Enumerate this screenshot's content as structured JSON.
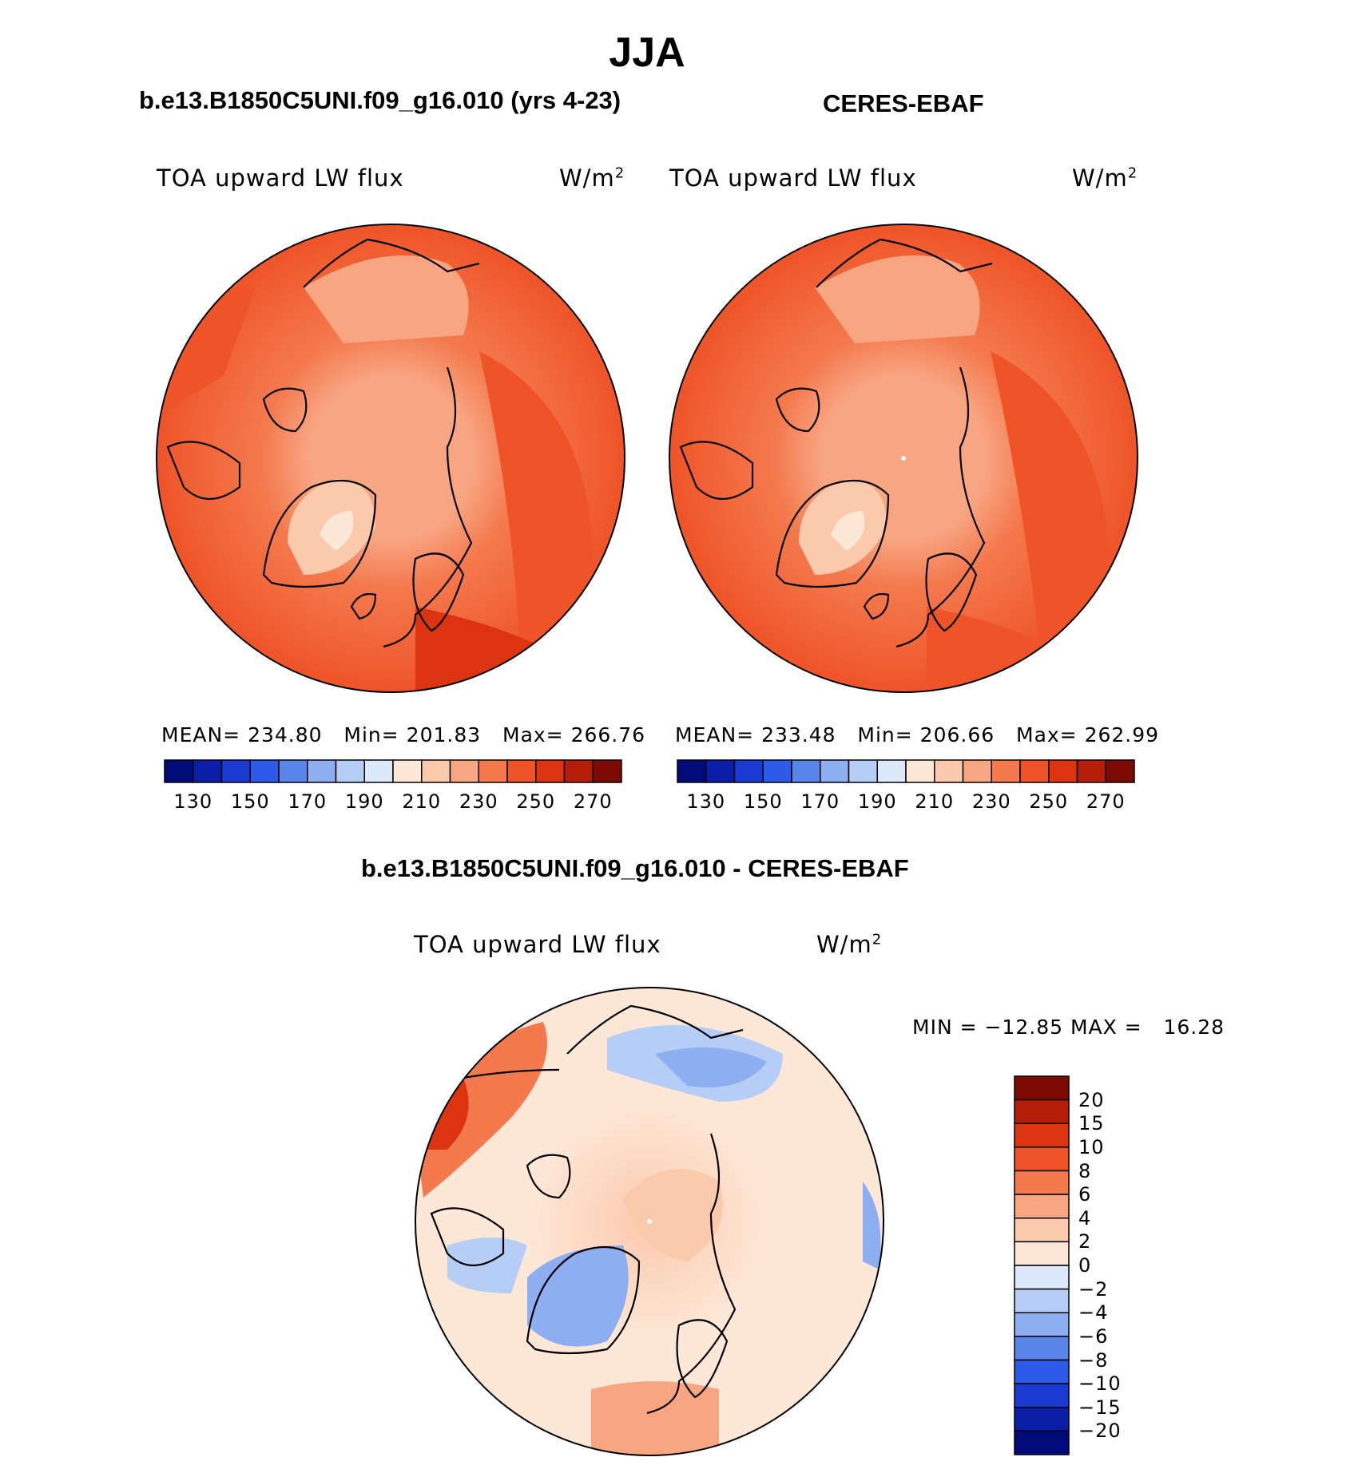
{
  "figure": {
    "title": "JJA",
    "panels": [
      {
        "id": "model",
        "title": "b.e13.B1850C5UNI.f09_g16.010 (yrs 4-23)",
        "variable": "TOA upward LW flux",
        "units_base": "W/m",
        "units_exp": "2",
        "stats": {
          "mean_label": "MEAN=",
          "mean": "234.80",
          "min_label": "Min=",
          "min": "201.83",
          "max_label": "Max=",
          "max": "266.76"
        }
      },
      {
        "id": "obs",
        "title": "CERES-EBAF",
        "variable": "TOA upward LW flux",
        "units_base": "W/m",
        "units_exp": "2",
        "stats": {
          "mean_label": "MEAN=",
          "mean": "233.48",
          "min_label": "Min=",
          "min": "206.66",
          "max_label": "Max=",
          "max": "262.99"
        }
      },
      {
        "id": "diff",
        "title": "b.e13.B1850C5UNI.f09_g16.010 - CERES-EBAF",
        "variable": "TOA upward LW flux",
        "units_base": "W/m",
        "units_exp": "2",
        "stats_text": "MIN = −12.85 MAX =   16.28"
      }
    ]
  },
  "colorbar_abs": {
    "levels": [
      "130",
      "150",
      "170",
      "190",
      "210",
      "230",
      "250",
      "270"
    ],
    "colors": [
      "#000a78",
      "#0a1ea8",
      "#1a3ad2",
      "#2e5ae8",
      "#5a86ec",
      "#8eaef2",
      "#b6cdf6",
      "#dbe9fb",
      "#fde7d6",
      "#fbc9ac",
      "#f8a582",
      "#f47a4e",
      "#ee5428",
      "#dc3410",
      "#b41e08",
      "#7c0a02"
    ]
  },
  "colorbar_diff": {
    "levels": [
      "20",
      "15",
      "10",
      "8",
      "6",
      "4",
      "2",
      "0",
      "−2",
      "−4",
      "−6",
      "−8",
      "−10",
      "−15",
      "−20"
    ],
    "colors": [
      "#7c0a02",
      "#b41e08",
      "#dc3410",
      "#ee5428",
      "#f47a4e",
      "#f8a582",
      "#fbc9ac",
      "#fde7d6",
      "#dbe9fb",
      "#b6cdf6",
      "#8eaef2",
      "#5a86ec",
      "#2e5ae8",
      "#1a3ad2",
      "#0a1ea8",
      "#000a78"
    ]
  }
}
